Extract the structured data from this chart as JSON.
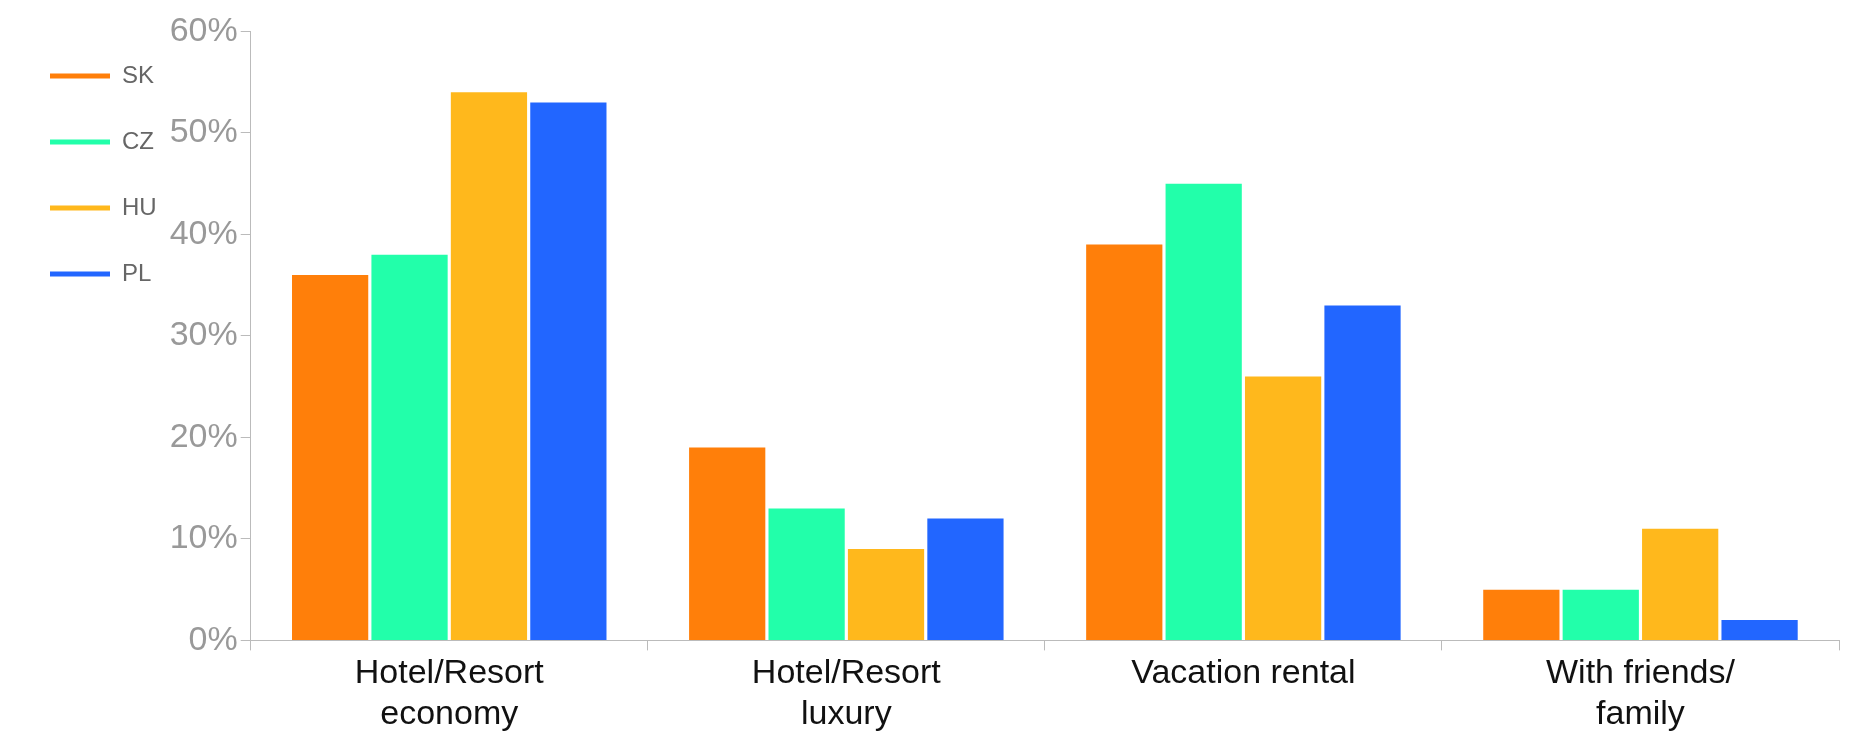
{
  "chart_data": {
    "type": "bar",
    "categories": [
      "Hotel/Resort economy",
      "Hotel/Resort luxury",
      "Vacation rental",
      "With friends/ family"
    ],
    "series": [
      {
        "name": "SK",
        "color": "#ff7f0a",
        "values": [
          36,
          19,
          39,
          5
        ]
      },
      {
        "name": "CZ",
        "color": "#22ffaa",
        "values": [
          38,
          13,
          45,
          5
        ]
      },
      {
        "name": "HU",
        "color": "#ffb81c",
        "values": [
          54,
          9,
          26,
          11
        ]
      },
      {
        "name": "PL",
        "color": "#2266ff",
        "values": [
          53,
          12,
          33,
          2
        ]
      }
    ],
    "ylim": [
      0,
      60
    ],
    "yticks": [
      {
        "value": 0,
        "label": "0%"
      },
      {
        "value": 10,
        "label": "10%"
      },
      {
        "value": 20,
        "label": "20%"
      },
      {
        "value": 30,
        "label": "30%"
      },
      {
        "value": 40,
        "label": "40%"
      },
      {
        "value": 50,
        "label": "50%"
      },
      {
        "value": 60,
        "label": "60%"
      }
    ],
    "grid": false,
    "legend": "top left"
  }
}
